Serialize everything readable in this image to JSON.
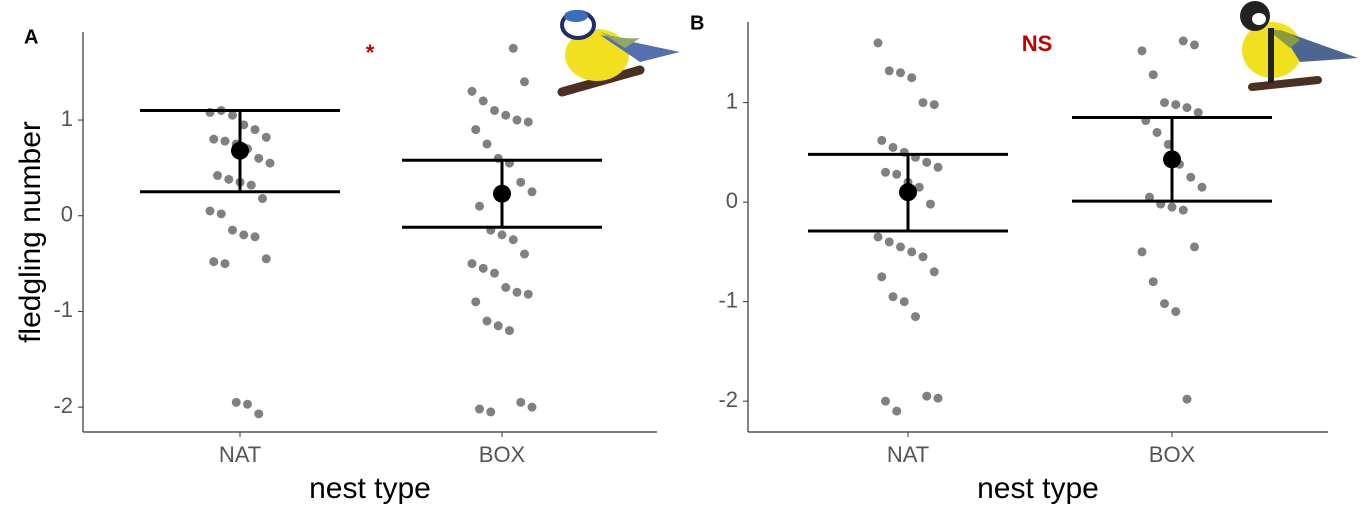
{
  "chart_data": [
    {
      "type": "dotplot",
      "panel_label": "A",
      "annotation": "*",
      "x_label": "nest type",
      "y_label": "fledgling number",
      "categories": [
        "NAT",
        "BOX"
      ],
      "points": [
        [
          1.08,
          1.1,
          1.05,
          0.95,
          0.9,
          0.82,
          0.8,
          0.78,
          0.75,
          0.7,
          0.6,
          0.55,
          0.42,
          0.38,
          0.35,
          0.32,
          0.18,
          0.05,
          0.02,
          -0.15,
          -0.2,
          -0.22,
          -0.45,
          -0.48,
          -0.5,
          -1.95,
          -1.97,
          -2.07
        ],
        [
          1.75,
          1.4,
          1.3,
          1.2,
          1.1,
          1.05,
          1.0,
          0.98,
          0.9,
          0.75,
          0.6,
          0.55,
          0.35,
          0.25,
          0.1,
          -0.15,
          -0.2,
          -0.25,
          -0.4,
          -0.5,
          -0.55,
          -0.6,
          -0.75,
          -0.8,
          -0.82,
          -0.9,
          -1.1,
          -1.15,
          -1.2,
          -1.95,
          -2.0,
          -2.02,
          -2.05
        ]
      ],
      "means": [
        0.68,
        0.23
      ],
      "ci_lower": [
        0.25,
        -0.12
      ],
      "ci_upper": [
        1.1,
        0.58
      ],
      "point_color": "#555555",
      "mean_color": "#000000",
      "ylim": [
        -2.26,
        1.92
      ],
      "yticks": [
        -2,
        -1,
        0,
        1
      ]
    },
    {
      "type": "dotplot",
      "panel_label": "B",
      "annotation": "NS",
      "x_label": "nest type",
      "categories": [
        "NAT",
        "BOX"
      ],
      "points": [
        [
          1.6,
          1.32,
          1.3,
          1.25,
          1.0,
          0.98,
          0.62,
          0.55,
          0.5,
          0.45,
          0.4,
          0.35,
          0.3,
          0.28,
          0.2,
          0.15,
          -0.02,
          -0.35,
          -0.4,
          -0.45,
          -0.5,
          -0.55,
          -0.7,
          -0.75,
          -0.95,
          -1.0,
          -1.15,
          -1.95,
          -1.97,
          -2.0,
          -2.1
        ],
        [
          1.62,
          1.58,
          1.52,
          1.28,
          1.0,
          0.98,
          0.95,
          0.9,
          0.82,
          0.7,
          0.58,
          0.38,
          0.25,
          0.15,
          0.05,
          -0.02,
          -0.05,
          -0.08,
          -0.45,
          -0.5,
          -0.8,
          -1.02,
          -1.1,
          -1.98
        ]
      ],
      "means": [
        0.1,
        0.43
      ],
      "ci_lower": [
        -0.29,
        0.01
      ],
      "ci_upper": [
        0.48,
        0.85
      ],
      "point_color": "#555555",
      "mean_color": "#000000",
      "ylim": [
        -2.31,
        1.81
      ],
      "yticks": [
        -2,
        -1,
        0,
        1
      ]
    }
  ]
}
